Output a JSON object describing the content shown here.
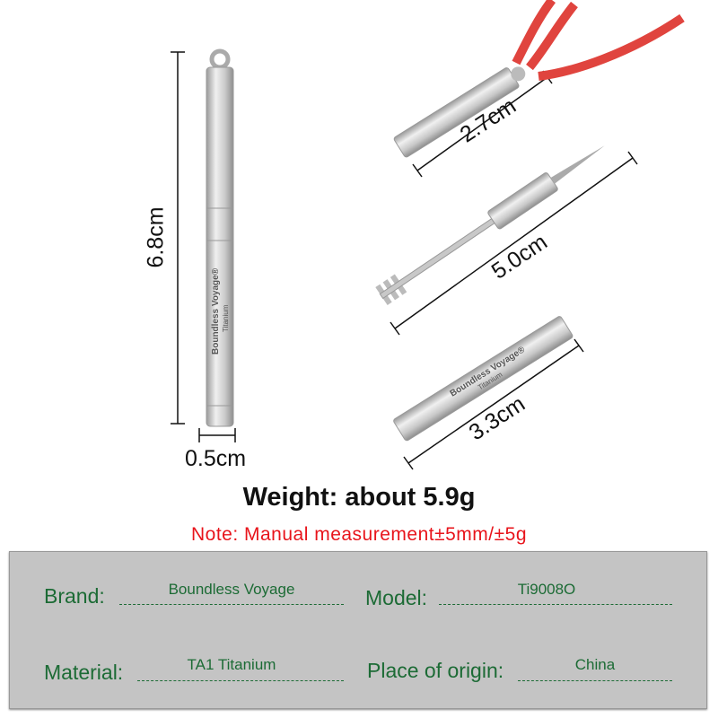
{
  "brand_on_product": "Boundless Voyage",
  "material_on_product": "Titanium",
  "dimensions": {
    "length_total": "6.8cm",
    "diameter": "0.5cm",
    "cap": "2.7cm",
    "tool": "5.0cm",
    "body": "3.3cm"
  },
  "weight": "Weight: about 5.9g",
  "note": "Note: Manual measurement±5mm/±5g",
  "spec": {
    "brand_label": "Brand:",
    "brand": "Boundless Voyage",
    "model_label": "Model:",
    "model": "Ti9008O",
    "material_label": "Material:",
    "material": "TA1 Titanium",
    "origin_label": "Place of origin:",
    "origin": "China"
  },
  "colors": {
    "note": "#e8141b",
    "spec_text": "#1c6b35",
    "spec_bg": "#c4c4c4",
    "rope": "#e0443e"
  }
}
